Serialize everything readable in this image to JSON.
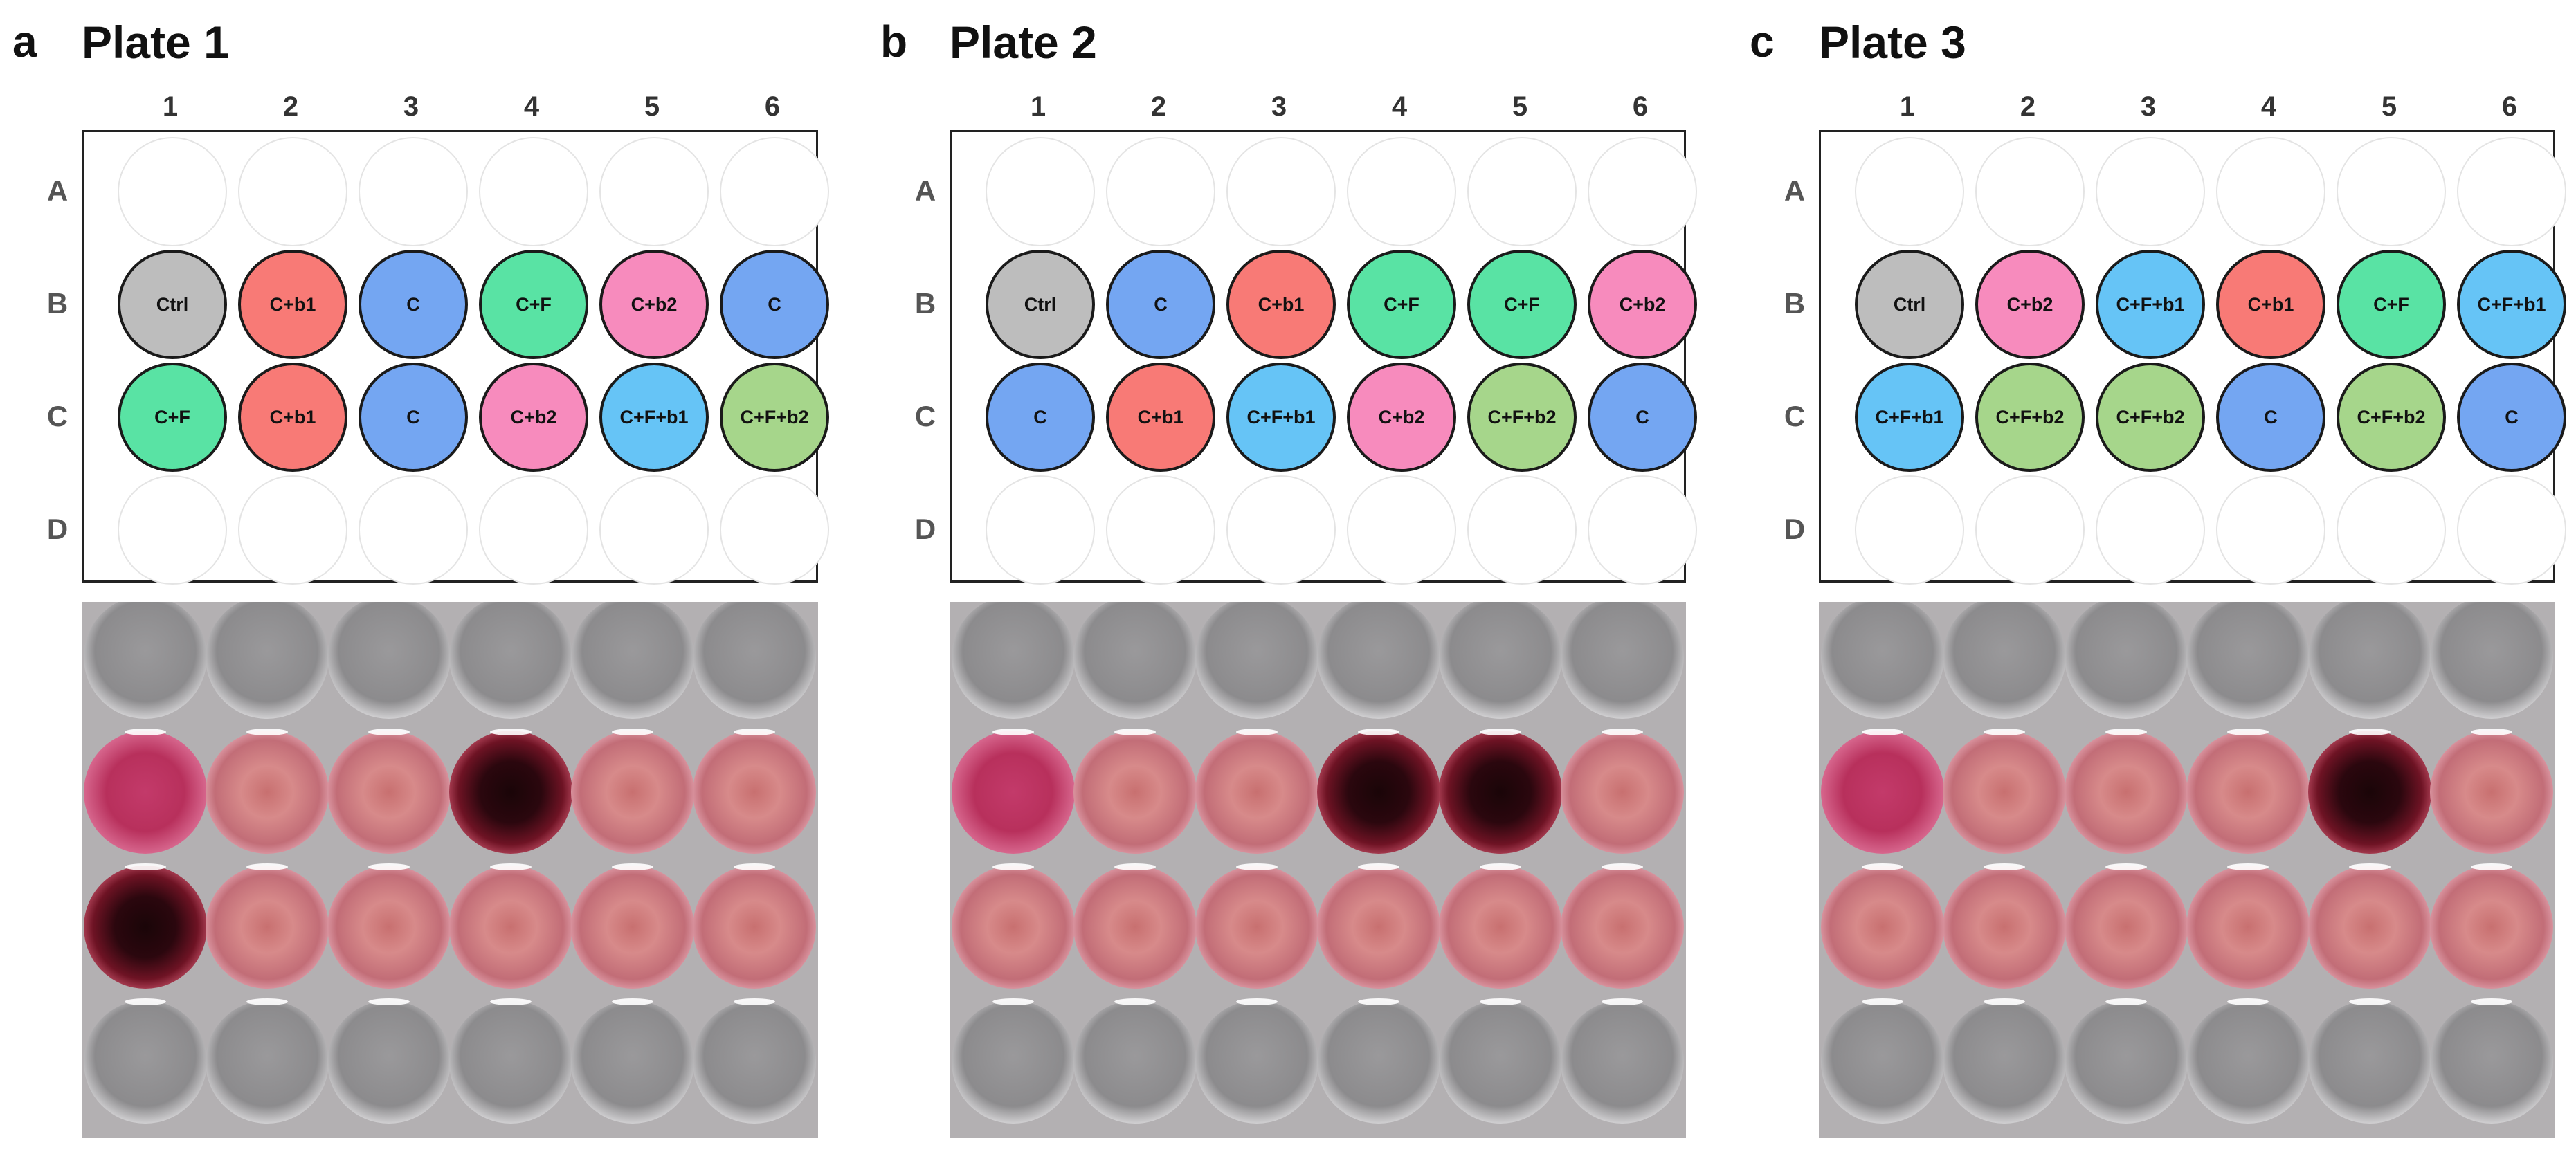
{
  "panels": [
    {
      "letter": "a",
      "title": "Plate 1",
      "columns": [
        "1",
        "2",
        "3",
        "4",
        "5",
        "6"
      ],
      "rows": [
        "A",
        "B",
        "C",
        "D"
      ],
      "wells": {
        "A": [
          null,
          null,
          null,
          null,
          null,
          null
        ],
        "B": [
          "Ctrl",
          "C+b1",
          "C",
          "C+F",
          "C+b2",
          "C"
        ],
        "C": [
          "C+F",
          "C+b1",
          "C",
          "C+b2",
          "C+F+b1",
          "C+F+b2"
        ],
        "D": [
          null,
          null,
          null,
          null,
          null,
          null
        ]
      },
      "photo": {
        "A": [
          "clear",
          "clear",
          "clear",
          "clear",
          "clear",
          "clear"
        ],
        "B": [
          "magenta",
          "pink",
          "pink",
          "dark",
          "pink",
          "pink"
        ],
        "C": [
          "dark",
          "pink",
          "pink",
          "pink",
          "pink",
          "pink"
        ],
        "D": [
          "clear",
          "clear",
          "clear",
          "clear",
          "clear",
          "clear"
        ]
      }
    },
    {
      "letter": "b",
      "title": "Plate 2",
      "columns": [
        "1",
        "2",
        "3",
        "4",
        "5",
        "6"
      ],
      "rows": [
        "A",
        "B",
        "C",
        "D"
      ],
      "wells": {
        "A": [
          null,
          null,
          null,
          null,
          null,
          null
        ],
        "B": [
          "Ctrl",
          "C",
          "C+b1",
          "C+F",
          "C+F",
          "C+b2"
        ],
        "C": [
          "C",
          "C+b1",
          "C+F+b1",
          "C+b2",
          "C+F+b2",
          "C"
        ],
        "D": [
          null,
          null,
          null,
          null,
          null,
          null
        ]
      },
      "photo": {
        "A": [
          "clear",
          "clear",
          "clear",
          "clear",
          "clear",
          "clear"
        ],
        "B": [
          "magenta",
          "pink",
          "pink",
          "dark",
          "dark",
          "pink"
        ],
        "C": [
          "pink",
          "pink",
          "pink",
          "pink",
          "pink",
          "pink"
        ],
        "D": [
          "clear",
          "clear",
          "clear",
          "clear",
          "clear",
          "clear"
        ]
      }
    },
    {
      "letter": "c",
      "title": "Plate 3",
      "columns": [
        "1",
        "2",
        "3",
        "4",
        "5",
        "6"
      ],
      "rows": [
        "A",
        "B",
        "C",
        "D"
      ],
      "wells": {
        "A": [
          null,
          null,
          null,
          null,
          null,
          null
        ],
        "B": [
          "Ctrl",
          "C+b2",
          "C+F+b1",
          "C+b1",
          "C+F",
          "C+F+b1"
        ],
        "C": [
          "C+F+b1",
          "C+F+b2",
          "C+F+b2",
          "C",
          "C+F+b2",
          "C"
        ],
        "D": [
          null,
          null,
          null,
          null,
          null,
          null
        ]
      },
      "photo": {
        "A": [
          "clear",
          "clear",
          "clear",
          "clear",
          "clear",
          "clear"
        ],
        "B": [
          "magenta",
          "pink",
          "pink",
          "pink",
          "dark",
          "pink"
        ],
        "C": [
          "pink",
          "pink",
          "pink",
          "pink",
          "pink",
          "pink"
        ],
        "D": [
          "clear",
          "clear",
          "clear",
          "clear",
          "clear",
          "clear"
        ]
      }
    }
  ],
  "treatment_colors": {
    "Ctrl": "#bdbdbd",
    "C": "#74a6f2",
    "C+b1": "#f87a76",
    "C+b2": "#f78bbd",
    "C+F": "#59e3a4",
    "C+F+b1": "#66c4f6",
    "C+F+b2": "#a6d68b"
  }
}
